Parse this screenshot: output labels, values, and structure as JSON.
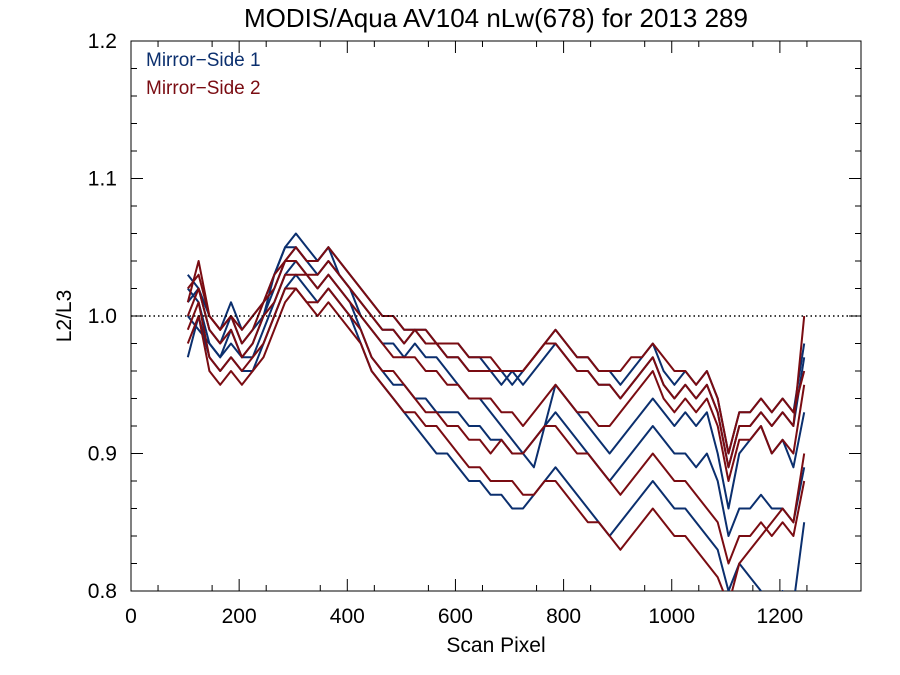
{
  "chart_data": {
    "type": "line",
    "title": "MODIS/Aqua AV104 nLw(678) for 2013 289",
    "xlabel": "Scan Pixel",
    "ylabel": "L2/L3",
    "xlim": [
      0,
      1350
    ],
    "ylim": [
      0.8,
      1.2
    ],
    "x_ticks": [
      0,
      200,
      400,
      600,
      800,
      1000,
      1200
    ],
    "x_tick_labels": [
      "0",
      "200",
      "400",
      "600",
      "800",
      "1000",
      "1200"
    ],
    "y_ticks": [
      0.8,
      0.9,
      1.0,
      1.1,
      1.2
    ],
    "y_tick_labels": [
      "0.8",
      "0.9",
      "1.0",
      "1.1",
      "1.2"
    ],
    "reference_line": 1.0,
    "legend_position": "top-left",
    "legend": [
      {
        "label": "Mirror−Side 1",
        "color": "#0b2f6e"
      },
      {
        "label": "Mirror−Side 2",
        "color": "#7a0c12"
      }
    ],
    "x": [
      105,
      125,
      145,
      165,
      185,
      205,
      225,
      245,
      265,
      285,
      305,
      325,
      345,
      365,
      385,
      405,
      425,
      445,
      465,
      485,
      505,
      525,
      545,
      565,
      585,
      605,
      625,
      645,
      665,
      685,
      705,
      725,
      745,
      765,
      785,
      805,
      825,
      845,
      865,
      885,
      905,
      925,
      945,
      965,
      985,
      1005,
      1025,
      1045,
      1065,
      1085,
      1105,
      1125,
      1145,
      1165,
      1185,
      1205,
      1225,
      1245
    ],
    "series": [
      {
        "group": "Mirror-Side 1",
        "color": "#0b2f6e",
        "values": [
          1.01,
          1.02,
          0.99,
          0.98,
          1.0,
          0.98,
          0.99,
          1.0,
          1.02,
          1.04,
          1.05,
          1.04,
          1.03,
          1.04,
          1.03,
          1.02,
          1.01,
          1.0,
          0.99,
          0.99,
          0.98,
          0.99,
          0.98,
          0.98,
          0.97,
          0.97,
          0.96,
          0.96,
          0.96,
          0.95,
          0.96,
          0.95,
          0.96,
          0.97,
          0.98,
          0.97,
          0.96,
          0.96,
          0.95,
          0.95,
          0.94,
          0.95,
          0.96,
          0.97,
          0.95,
          0.94,
          0.95,
          0.94,
          0.95,
          0.93,
          0.89,
          0.92,
          0.92,
          0.93,
          0.92,
          0.93,
          0.92,
          0.97
        ]
      },
      {
        "group": "Mirror-Side 1",
        "color": "#0b2f6e",
        "values": [
          1.02,
          1.01,
          0.98,
          0.97,
          0.99,
          0.97,
          0.98,
          1.0,
          1.03,
          1.05,
          1.06,
          1.05,
          1.04,
          1.05,
          1.03,
          1.02,
          1.0,
          0.99,
          0.98,
          0.98,
          0.97,
          0.98,
          0.97,
          0.97,
          0.96,
          0.95,
          0.94,
          0.94,
          0.93,
          0.92,
          0.91,
          0.9,
          0.89,
          0.92,
          0.95,
          0.94,
          0.93,
          0.92,
          0.91,
          0.9,
          0.91,
          0.92,
          0.93,
          0.94,
          0.93,
          0.92,
          0.93,
          0.92,
          0.93,
          0.9,
          0.86,
          0.9,
          0.91,
          0.92,
          0.9,
          0.91,
          0.89,
          0.93
        ]
      },
      {
        "group": "Mirror-Side 1",
        "color": "#0b2f6e",
        "values": [
          0.97,
          1.0,
          0.97,
          0.96,
          0.97,
          0.96,
          0.96,
          0.98,
          1.0,
          1.02,
          1.03,
          1.02,
          1.01,
          1.02,
          1.01,
          1.0,
          0.98,
          0.96,
          0.95,
          0.94,
          0.93,
          0.92,
          0.91,
          0.9,
          0.9,
          0.89,
          0.88,
          0.88,
          0.87,
          0.87,
          0.86,
          0.86,
          0.87,
          0.88,
          0.89,
          0.88,
          0.87,
          0.86,
          0.85,
          0.84,
          0.85,
          0.86,
          0.87,
          0.88,
          0.87,
          0.86,
          0.86,
          0.85,
          0.84,
          0.83,
          0.8,
          0.82,
          0.81,
          0.8,
          0.78,
          0.8,
          0.79,
          0.85
        ]
      },
      {
        "group": "Mirror-Side 1",
        "color": "#0b2f6e",
        "values": [
          1.03,
          1.02,
          1.0,
          0.99,
          1.01,
          0.99,
          1.0,
          1.01,
          1.03,
          1.05,
          1.05,
          1.04,
          1.04,
          1.05,
          1.04,
          1.03,
          1.02,
          1.01,
          1.0,
          1.0,
          0.99,
          0.99,
          0.99,
          0.98,
          0.98,
          0.98,
          0.97,
          0.97,
          0.96,
          0.96,
          0.95,
          0.96,
          0.97,
          0.98,
          0.99,
          0.98,
          0.97,
          0.97,
          0.96,
          0.96,
          0.95,
          0.96,
          0.97,
          0.98,
          0.96,
          0.95,
          0.96,
          0.95,
          0.96,
          0.94,
          0.9,
          0.93,
          0.93,
          0.94,
          0.93,
          0.94,
          0.93,
          0.98
        ]
      },
      {
        "group": "Mirror-Side 1",
        "color": "#0b2f6e",
        "values": [
          1.0,
          0.99,
          0.98,
          0.97,
          0.98,
          0.97,
          0.97,
          0.99,
          1.01,
          1.03,
          1.04,
          1.03,
          1.02,
          1.03,
          1.02,
          1.01,
          0.99,
          0.97,
          0.96,
          0.95,
          0.95,
          0.94,
          0.94,
          0.93,
          0.93,
          0.93,
          0.92,
          0.92,
          0.91,
          0.91,
          0.9,
          0.9,
          0.91,
          0.92,
          0.93,
          0.92,
          0.91,
          0.9,
          0.89,
          0.88,
          0.89,
          0.9,
          0.91,
          0.92,
          0.91,
          0.9,
          0.9,
          0.89,
          0.9,
          0.88,
          0.84,
          0.86,
          0.86,
          0.87,
          0.86,
          0.86,
          0.85,
          0.89
        ]
      },
      {
        "group": "Mirror-Side 2",
        "color": "#7a0c12",
        "values": [
          1.01,
          1.04,
          1.0,
          0.99,
          1.0,
          0.98,
          0.99,
          1.01,
          1.02,
          1.04,
          1.04,
          1.03,
          1.03,
          1.04,
          1.03,
          1.02,
          1.01,
          1.0,
          0.99,
          0.99,
          0.98,
          0.99,
          0.98,
          0.98,
          0.97,
          0.97,
          0.96,
          0.96,
          0.96,
          0.96,
          0.96,
          0.96,
          0.97,
          0.98,
          0.98,
          0.97,
          0.96,
          0.96,
          0.95,
          0.95,
          0.94,
          0.95,
          0.96,
          0.97,
          0.95,
          0.94,
          0.95,
          0.94,
          0.95,
          0.93,
          0.89,
          0.92,
          0.92,
          0.93,
          0.92,
          0.93,
          0.92,
          1.0
        ]
      },
      {
        "group": "Mirror-Side 2",
        "color": "#7a0c12",
        "values": [
          1.0,
          1.02,
          0.99,
          0.98,
          0.99,
          0.97,
          0.98,
          1.0,
          1.01,
          1.03,
          1.03,
          1.03,
          1.02,
          1.03,
          1.02,
          1.01,
          1.0,
          0.99,
          0.98,
          0.97,
          0.97,
          0.97,
          0.96,
          0.96,
          0.95,
          0.95,
          0.94,
          0.94,
          0.94,
          0.93,
          0.93,
          0.92,
          0.93,
          0.94,
          0.95,
          0.94,
          0.93,
          0.93,
          0.92,
          0.92,
          0.93,
          0.94,
          0.95,
          0.96,
          0.94,
          0.93,
          0.94,
          0.93,
          0.94,
          0.92,
          0.88,
          0.91,
          0.91,
          0.92,
          0.9,
          0.91,
          0.9,
          0.95
        ]
      },
      {
        "group": "Mirror-Side 2",
        "color": "#7a0c12",
        "values": [
          0.99,
          1.01,
          0.97,
          0.96,
          0.97,
          0.96,
          0.97,
          0.98,
          1.0,
          1.02,
          1.02,
          1.01,
          1.01,
          1.02,
          1.01,
          1.0,
          0.99,
          0.97,
          0.96,
          0.96,
          0.95,
          0.94,
          0.93,
          0.93,
          0.92,
          0.92,
          0.91,
          0.91,
          0.9,
          0.91,
          0.9,
          0.9,
          0.91,
          0.92,
          0.92,
          0.91,
          0.9,
          0.9,
          0.89,
          0.88,
          0.87,
          0.88,
          0.89,
          0.9,
          0.89,
          0.88,
          0.88,
          0.87,
          0.86,
          0.85,
          0.82,
          0.84,
          0.84,
          0.85,
          0.84,
          0.85,
          0.84,
          0.88
        ]
      },
      {
        "group": "Mirror-Side 2",
        "color": "#7a0c12",
        "values": [
          1.02,
          1.03,
          1.0,
          0.99,
          1.0,
          0.99,
          1.0,
          1.01,
          1.03,
          1.04,
          1.05,
          1.04,
          1.04,
          1.05,
          1.04,
          1.03,
          1.02,
          1.01,
          1.0,
          1.0,
          0.99,
          0.99,
          0.99,
          0.98,
          0.98,
          0.98,
          0.97,
          0.97,
          0.97,
          0.96,
          0.96,
          0.96,
          0.97,
          0.98,
          0.99,
          0.98,
          0.97,
          0.97,
          0.96,
          0.96,
          0.96,
          0.97,
          0.97,
          0.98,
          0.97,
          0.96,
          0.96,
          0.95,
          0.96,
          0.94,
          0.9,
          0.93,
          0.93,
          0.94,
          0.93,
          0.94,
          0.93,
          0.96
        ]
      },
      {
        "group": "Mirror-Side 2",
        "color": "#7a0c12",
        "values": [
          0.98,
          1.0,
          0.96,
          0.95,
          0.96,
          0.95,
          0.96,
          0.97,
          0.99,
          1.01,
          1.02,
          1.01,
          1.0,
          1.01,
          1.0,
          0.99,
          0.98,
          0.96,
          0.95,
          0.94,
          0.93,
          0.93,
          0.92,
          0.92,
          0.91,
          0.9,
          0.89,
          0.89,
          0.88,
          0.88,
          0.88,
          0.87,
          0.87,
          0.88,
          0.88,
          0.87,
          0.86,
          0.85,
          0.85,
          0.84,
          0.83,
          0.84,
          0.85,
          0.86,
          0.85,
          0.84,
          0.84,
          0.83,
          0.82,
          0.81,
          0.79,
          0.82,
          0.83,
          0.84,
          0.85,
          0.86,
          0.85,
          0.9
        ]
      }
    ]
  }
}
